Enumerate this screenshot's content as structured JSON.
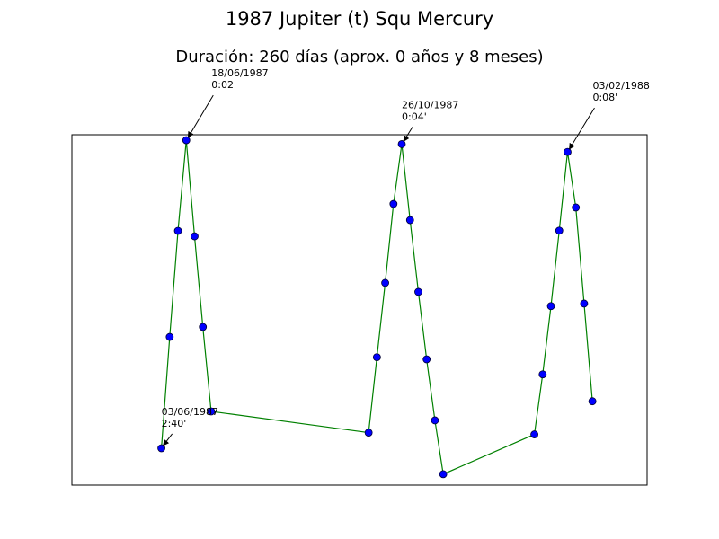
{
  "chart_data": {
    "type": "line",
    "title": "1987 Jupiter (t) Squ Mercury",
    "subtitle": "Duración: 260 días (aprox. 0 años y 8 meses)",
    "x": [
      "1987-06-03",
      "1987-06-08",
      "1987-06-13",
      "1987-06-18",
      "1987-06-23",
      "1987-06-28",
      "1987-07-03",
      "1987-10-06",
      "1987-10-11",
      "1987-10-16",
      "1987-10-21",
      "1987-10-26",
      "1987-10-31",
      "1987-11-05",
      "1987-11-10",
      "1987-11-15",
      "1987-11-20",
      "1988-01-14",
      "1988-01-19",
      "1988-01-24",
      "1988-01-29",
      "1988-02-03",
      "1988-02-08",
      "1988-02-13",
      "1988-02-18"
    ],
    "series": [
      {
        "color": "#008000",
        "marker_color": "#0000ff",
        "values": [
          160,
          102.9,
          48.5,
          2,
          51.3,
          97.8,
          141.1,
          152,
          113.3,
          75.2,
          34.7,
          4,
          43,
          79.8,
          114.4,
          145.7,
          173.3,
          152.9,
          122.1,
          87.1,
          48.4,
          8,
          36.5,
          85.8,
          135.9
        ]
      }
    ],
    "xlim": [
      "1987-04-10",
      "1988-03-22"
    ],
    "ylim": [
      -0.8,
      178.9
    ],
    "y_inverted": true,
    "annotations": [
      {
        "point": 0,
        "date": "03/06/1987",
        "orb": "2:40'"
      },
      {
        "point": 3,
        "date": "18/06/1987",
        "orb": "0:02'"
      },
      {
        "point": 11,
        "date": "26/10/1987",
        "orb": "0:04'"
      },
      {
        "point": 21,
        "date": "03/02/1988",
        "orb": "0:08'"
      }
    ]
  }
}
